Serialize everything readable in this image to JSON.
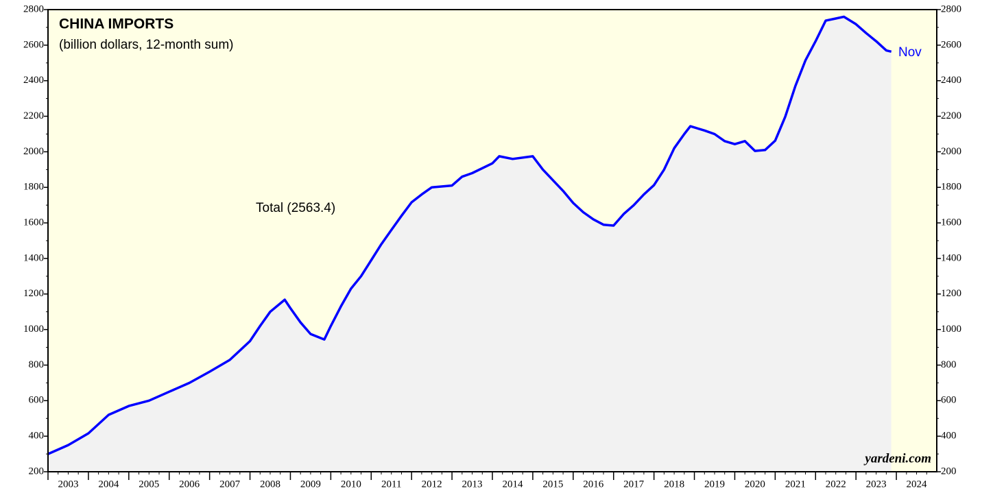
{
  "chart_data": {
    "type": "area-line",
    "title": "CHINA IMPORTS",
    "subtitle": "(billion dollars, 12-month sum)",
    "annotations": [
      "Total (2563.4)",
      "Nov"
    ],
    "source": "yardeni.com",
    "series": [
      {
        "name": "Total",
        "color": "#0000ff",
        "fill": "#f2f2f2",
        "x": [
          2003.0,
          2003.5,
          2004.0,
          2004.5,
          2005.0,
          2005.5,
          2006.0,
          2006.5,
          2007.0,
          2007.5,
          2008.0,
          2008.25,
          2008.5,
          2008.86,
          2009.0,
          2009.25,
          2009.5,
          2009.84,
          2010.0,
          2010.25,
          2010.5,
          2010.75,
          2011.0,
          2011.25,
          2011.5,
          2011.75,
          2012.0,
          2012.25,
          2012.5,
          2013.0,
          2013.25,
          2013.5,
          2014.0,
          2014.17,
          2014.5,
          2015.0,
          2015.25,
          2015.5,
          2015.75,
          2016.0,
          2016.25,
          2016.5,
          2016.75,
          2017.0,
          2017.25,
          2017.5,
          2017.75,
          2018.0,
          2018.25,
          2018.5,
          2018.75,
          2018.9,
          2019.25,
          2019.5,
          2019.75,
          2020.0,
          2020.25,
          2020.5,
          2020.75,
          2021.0,
          2021.25,
          2021.5,
          2021.75,
          2022.0,
          2022.25,
          2022.5,
          2022.7,
          2023.0,
          2023.25,
          2023.5,
          2023.75,
          2023.875
        ],
        "values": [
          300,
          350,
          416,
          520,
          570,
          600,
          650,
          700,
          763,
          829,
          935,
          1020,
          1100,
          1168,
          1120,
          1040,
          975,
          944,
          1020,
          1130,
          1230,
          1300,
          1390,
          1480,
          1560,
          1640,
          1716,
          1760,
          1800,
          1810,
          1860,
          1880,
          1935,
          1975,
          1960,
          1975,
          1900,
          1840,
          1780,
          1712,
          1660,
          1620,
          1590,
          1585,
          1650,
          1700,
          1760,
          1812,
          1900,
          2020,
          2100,
          2144,
          2120,
          2100,
          2060,
          2043,
          2060,
          2005,
          2010,
          2063,
          2198,
          2370,
          2514,
          2622,
          2738,
          2750,
          2760,
          2718,
          2668,
          2622,
          2570,
          2563.4
        ]
      }
    ],
    "xlim": [
      2003,
      2025
    ],
    "xticks": [
      2003,
      2004,
      2005,
      2006,
      2007,
      2008,
      2009,
      2010,
      2011,
      2012,
      2013,
      2014,
      2015,
      2016,
      2017,
      2018,
      2019,
      2020,
      2021,
      2022,
      2023,
      2024
    ],
    "ylim": [
      200,
      2800
    ],
    "yticks": [
      200,
      400,
      600,
      800,
      1000,
      1200,
      1400,
      1600,
      1800,
      2000,
      2200,
      2400,
      2600,
      2800
    ],
    "background": "#ffffe5"
  }
}
